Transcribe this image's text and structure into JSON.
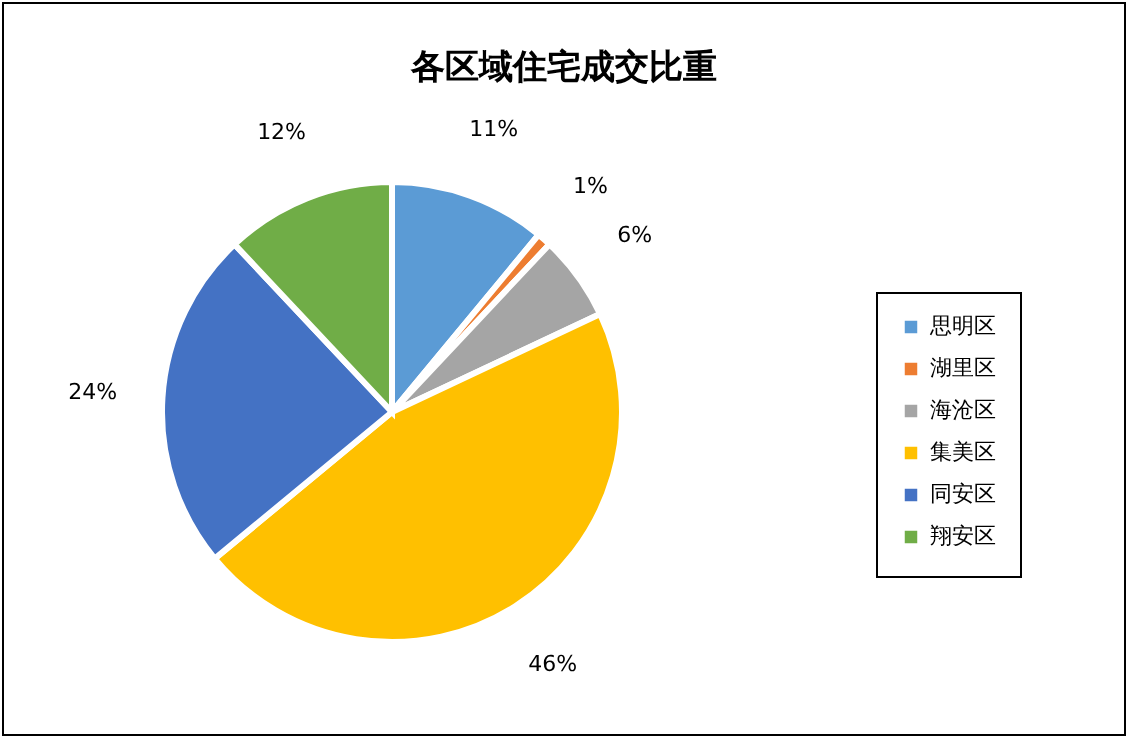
{
  "chart_data": {
    "type": "pie",
    "title": "各区域住宅成交比重",
    "categories": [
      "思明区",
      "湖里区",
      "海沧区",
      "集美区",
      "同安区",
      "翔安区"
    ],
    "values": [
      11,
      1,
      6,
      46,
      24,
      12
    ],
    "value_labels": [
      "11%",
      "1%",
      "6%",
      "46%",
      "24%",
      "12%"
    ],
    "colors": [
      "#5b9bd5",
      "#ed7d31",
      "#a5a5a5",
      "#ffc000",
      "#4472c4",
      "#70ad47"
    ],
    "legend": "right"
  }
}
